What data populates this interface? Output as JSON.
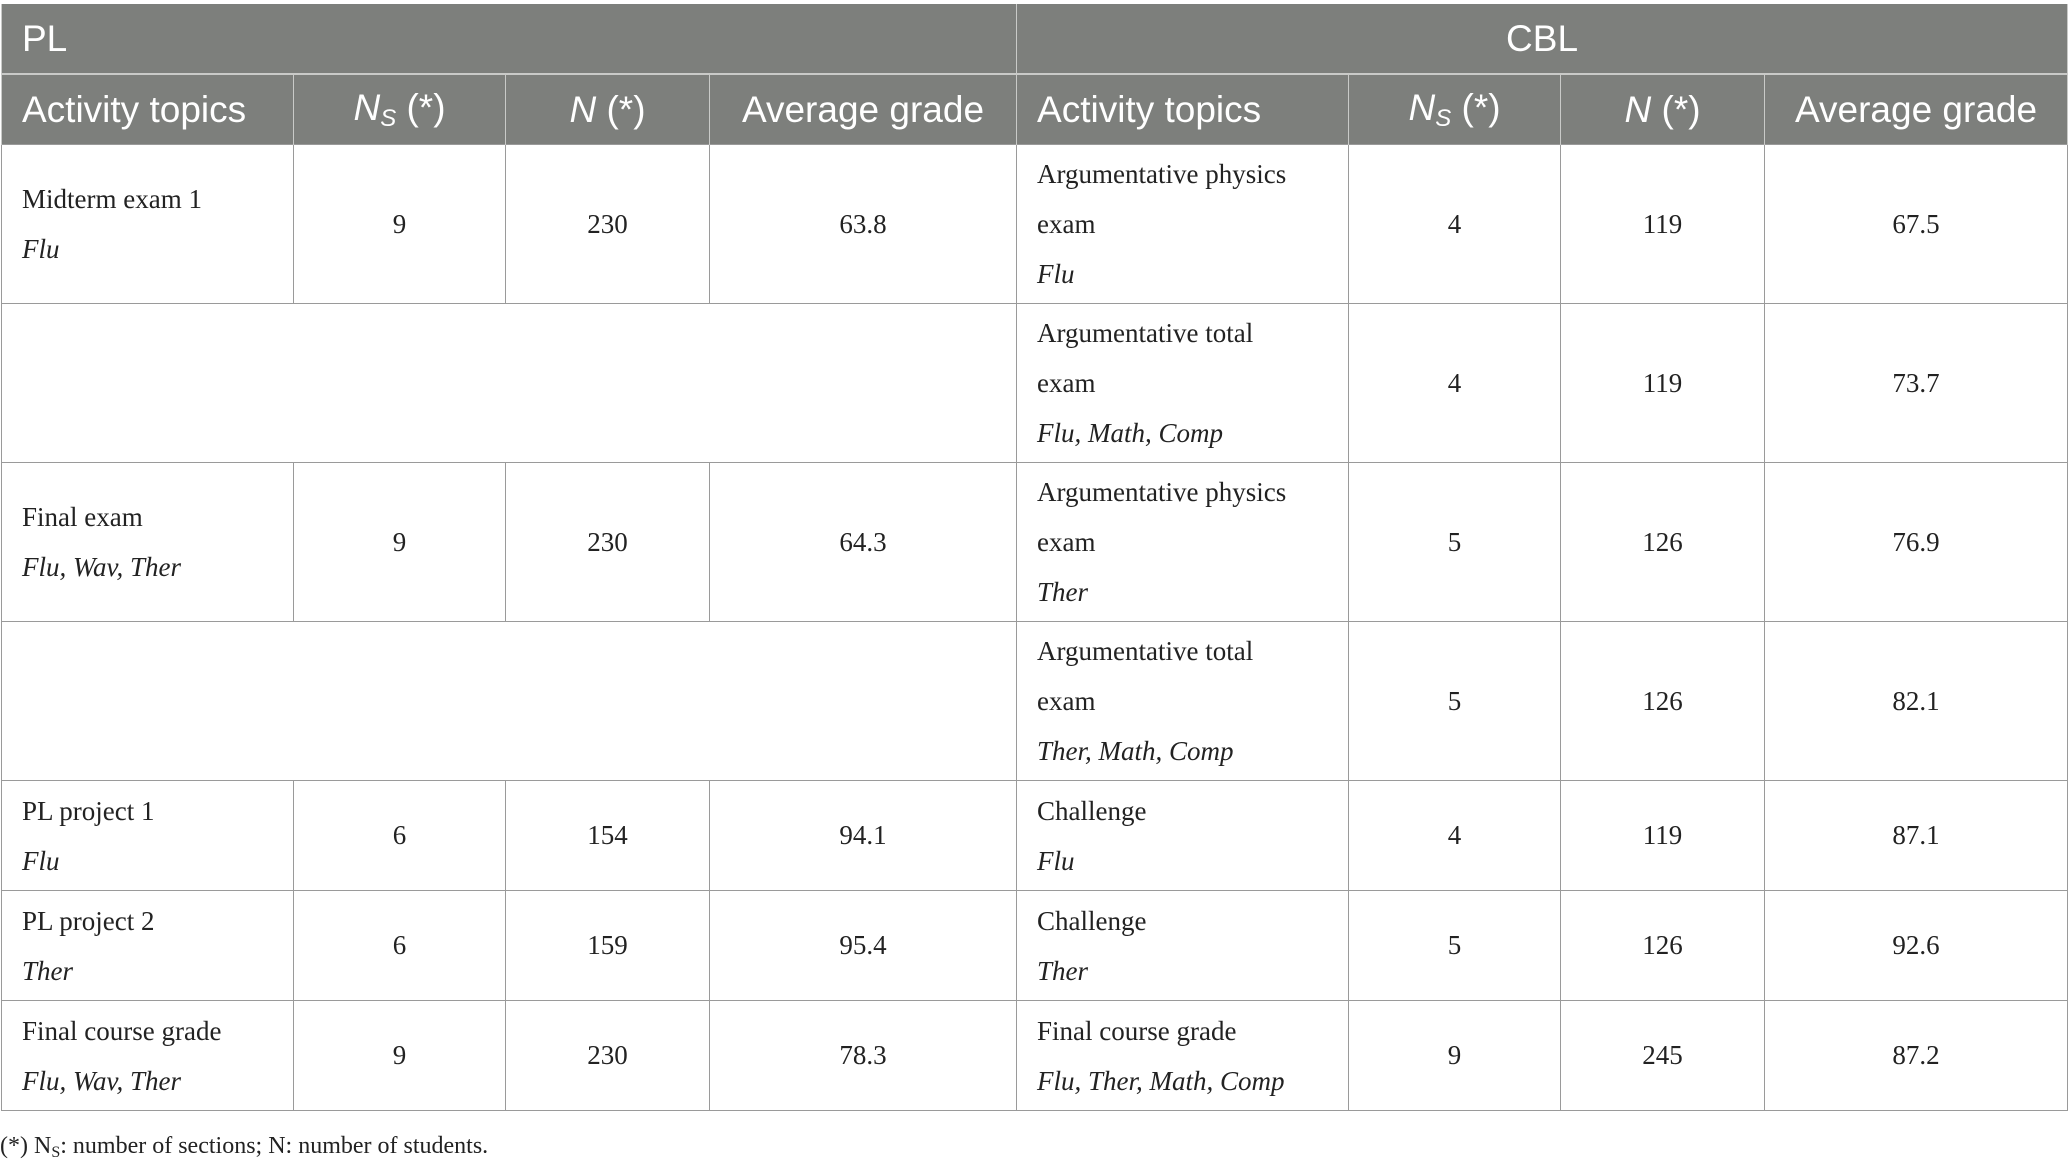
{
  "table": {
    "groups": {
      "pl": "PL",
      "cbl": "CBL"
    },
    "columns": {
      "activity": "Activity topics",
      "ns_main": "N",
      "ns_sub": "S",
      "ns_tail": " (*)",
      "n_main": "N",
      "n_tail": " (*)",
      "avg": "Average grade"
    },
    "rows": [
      {
        "pl": {
          "topic": "Midterm exam 1",
          "sub": "Flu",
          "ns": "9",
          "n": "230",
          "avg": "63.8"
        },
        "cbl": {
          "topic1": "Argumentative physics",
          "topic2": "exam",
          "sub": "Flu",
          "ns": "4",
          "n": "119",
          "avg": "67.5"
        }
      },
      {
        "cbl": {
          "topic1": "Argumentative total",
          "topic2": "exam",
          "sub": "Flu, Math, Comp",
          "ns": "4",
          "n": "119",
          "avg": "73.7"
        }
      },
      {
        "pl": {
          "topic": "Final exam",
          "sub": "Flu, Wav, Ther",
          "ns": "9",
          "n": "230",
          "avg": "64.3"
        },
        "cbl": {
          "topic1": "Argumentative physics",
          "topic2": "exam",
          "sub": "Ther",
          "ns": "5",
          "n": "126",
          "avg": "76.9"
        }
      },
      {
        "cbl": {
          "topic1": "Argumentative total",
          "topic2": "exam",
          "sub": "Ther, Math, Comp",
          "ns": "5",
          "n": "126",
          "avg": "82.1"
        }
      },
      {
        "pl": {
          "topic": "PL project 1",
          "sub": "Flu",
          "ns": "6",
          "n": "154",
          "avg": "94.1"
        },
        "cbl": {
          "topic": "Challenge",
          "sub": "Flu",
          "ns": "4",
          "n": "119",
          "avg": "87.1"
        }
      },
      {
        "pl": {
          "topic": "PL project 2",
          "sub": "Ther",
          "ns": "6",
          "n": "159",
          "avg": "95.4"
        },
        "cbl": {
          "topic": "Challenge",
          "sub": "Ther",
          "ns": "5",
          "n": "126",
          "avg": "92.6"
        }
      },
      {
        "pl": {
          "topic": "Final course grade",
          "sub": "Flu, Wav, Ther",
          "ns": "9",
          "n": "230",
          "avg": "78.3"
        },
        "cbl": {
          "topic": "Final course grade",
          "sub": "Flu, Ther, Math, Comp",
          "ns": "9",
          "n": "245",
          "avg": "87.2"
        }
      }
    ]
  },
  "footnote": {
    "prefix": "(*) N",
    "sub": "S",
    "text": ": number of sections; N: number of students."
  }
}
